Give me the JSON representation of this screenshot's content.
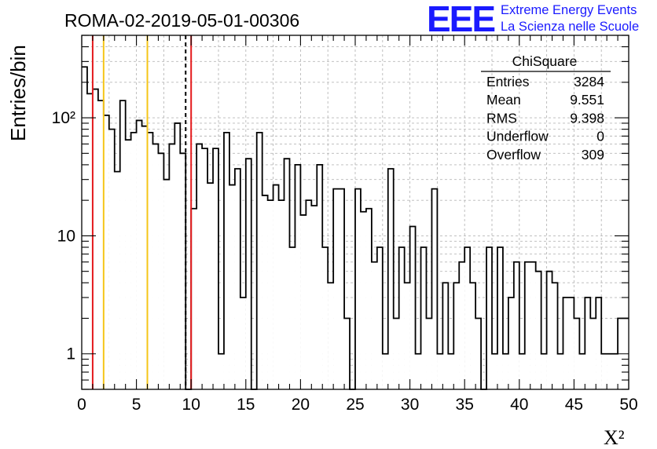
{
  "page": {
    "title": "ROMA-02-2019-05-01-00306"
  },
  "logo": {
    "mark": "EEE",
    "line1": "Extreme Energy Events",
    "line2": "La Scienza nelle Scuole",
    "color": "#1a1aff"
  },
  "stats_box": {
    "title": "ChiSquare",
    "rows": [
      {
        "label": "Entries",
        "value": "3284"
      },
      {
        "label": "Mean",
        "value": "9.551"
      },
      {
        "label": "RMS",
        "value": "9.398"
      },
      {
        "label": "Underflow",
        "value": "0"
      },
      {
        "label": "Overflow",
        "value": "309"
      }
    ]
  },
  "chart_data": {
    "type": "bar",
    "title": "ROMA-02-2019-05-01-00306",
    "xlabel": "X²",
    "ylabel": "Entries/bin",
    "xlim": [
      0,
      50
    ],
    "ylim": [
      0.5,
      500
    ],
    "yscale": "log",
    "grid": true,
    "bin_width": 0.5,
    "x_ticks": [
      0,
      5,
      10,
      15,
      20,
      25,
      30,
      35,
      40,
      45,
      50
    ],
    "y_ticks": [
      {
        "value": 1,
        "label": "1"
      },
      {
        "value": 10,
        "label": "10"
      },
      {
        "value": 100,
        "label": "10²"
      }
    ],
    "values": [
      270,
      160,
      175,
      140,
      105,
      80,
      35,
      140,
      65,
      75,
      95,
      85,
      75,
      60,
      50,
      30,
      60,
      90,
      50,
      0,
      17,
      60,
      55,
      28,
      55,
      1,
      75,
      27,
      37,
      3,
      45,
      0,
      75,
      22,
      20,
      27,
      20,
      45,
      8,
      40,
      15,
      20,
      18,
      40,
      8,
      4,
      25,
      25,
      2,
      0,
      25,
      16,
      17,
      6,
      8,
      1,
      37,
      2,
      8,
      4,
      12,
      1,
      8,
      2,
      25,
      1,
      4,
      1,
      4,
      6,
      8,
      4,
      2,
      0,
      8,
      1,
      8,
      1,
      3,
      6,
      1,
      6,
      6,
      5,
      1,
      5,
      4,
      1,
      3,
      3,
      2,
      1,
      3,
      2,
      3,
      1,
      1,
      1,
      2,
      2
    ],
    "vertical_lines": [
      {
        "x": 1,
        "color": "#e41a1c",
        "style": "solid"
      },
      {
        "x": 2,
        "color": "#f5c518",
        "style": "solid"
      },
      {
        "x": 6,
        "color": "#f5c518",
        "style": "solid"
      },
      {
        "x": 9.5,
        "color": "#000000",
        "style": "dashed"
      },
      {
        "x": 10,
        "color": "#e41a1c",
        "style": "solid"
      }
    ]
  }
}
